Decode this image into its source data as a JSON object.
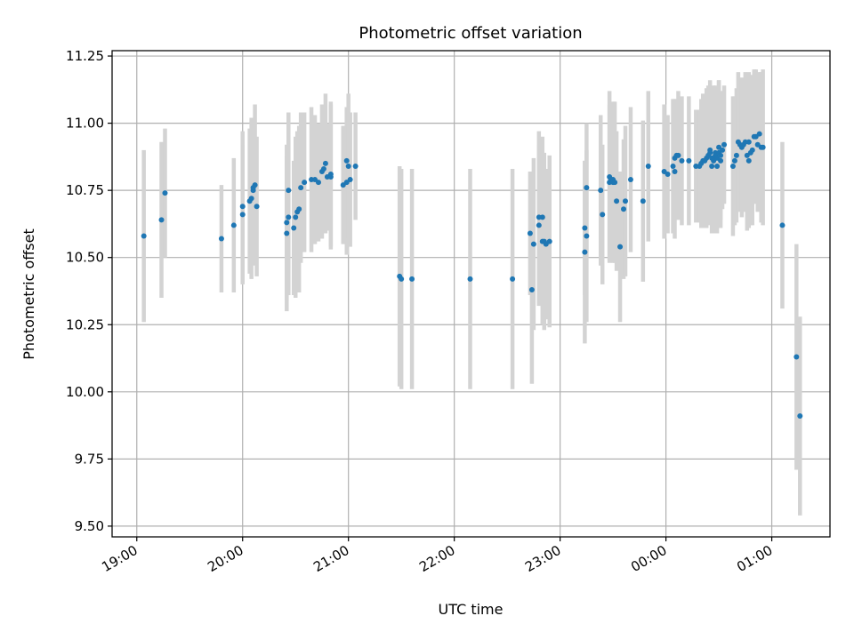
{
  "chart_data": {
    "type": "scatter",
    "title": "Photometric offset variation",
    "xlabel": "UTC time",
    "ylabel": "Photometric offset",
    "grid": true,
    "ylim": [
      9.46,
      11.27
    ],
    "xlim": [
      "18:46",
      "01:33"
    ],
    "x_ticks": [
      "19:00",
      "20:00",
      "21:00",
      "22:00",
      "23:00",
      "00:00",
      "01:00"
    ],
    "y_ticks": [
      "9.50",
      "9.75",
      "10.00",
      "10.25",
      "10.50",
      "10.75",
      "11.00",
      "11.25"
    ],
    "colors": {
      "point": "#1f77b4",
      "errorbar": "#d3d3d3",
      "grid": "#b0b0b0"
    },
    "series": [
      {
        "x": [
          "19:04",
          "19:14",
          "19:16",
          "19:48",
          "19:55",
          "20:00",
          "20:00",
          "20:04",
          "20:05",
          "20:06",
          "20:06",
          "20:07",
          "20:08",
          "20:25",
          "20:25",
          "20:26",
          "20:26",
          "20:29",
          "20:30",
          "20:31",
          "20:32",
          "20:33",
          "20:35",
          "20:39",
          "20:41",
          "20:43",
          "20:45",
          "20:46",
          "20:47",
          "20:48",
          "20:50",
          "20:50",
          "20:57",
          "20:59",
          "20:59",
          "21:00",
          "21:01",
          "21:04",
          "21:29",
          "21:30",
          "21:36",
          "22:09",
          "22:33",
          "22:43",
          "22:44",
          "22:45",
          "22:48",
          "22:48",
          "22:50",
          "22:50",
          "22:51",
          "22:52",
          "22:54",
          "23:14",
          "23:14",
          "23:15",
          "23:15",
          "23:23",
          "23:24",
          "23:28",
          "23:28",
          "23:29",
          "23:30",
          "23:30",
          "23:31",
          "23:32",
          "23:34",
          "23:36",
          "23:37",
          "23:40",
          "23:47",
          "23:50",
          "23:59",
          "24:01",
          "24:04",
          "24:05",
          "24:05",
          "24:06",
          "24:07",
          "24:09",
          "24:13",
          "24:17",
          "24:19",
          "24:20",
          "24:21",
          "24:22",
          "24:23",
          "24:24",
          "24:25",
          "24:25",
          "24:26",
          "24:26",
          "24:27",
          "24:27",
          "24:28",
          "24:28",
          "24:29",
          "24:29",
          "24:30",
          "24:30",
          "24:31",
          "24:31",
          "24:32",
          "24:33",
          "24:38",
          "24:39",
          "24:40",
          "24:41",
          "24:42",
          "24:43",
          "24:44",
          "24:45",
          "24:46",
          "24:47",
          "24:47",
          "24:48",
          "24:49",
          "24:50",
          "24:51",
          "24:52",
          "24:53",
          "24:54",
          "24:55",
          "25:06",
          "25:14",
          "25:16"
        ],
        "y": [
          10.58,
          10.64,
          10.74,
          10.57,
          10.62,
          10.69,
          10.66,
          10.71,
          10.72,
          10.75,
          10.76,
          10.77,
          10.69,
          10.59,
          10.63,
          10.65,
          10.75,
          10.61,
          10.65,
          10.67,
          10.68,
          10.76,
          10.78,
          10.79,
          10.79,
          10.78,
          10.82,
          10.83,
          10.85,
          10.8,
          10.8,
          10.81,
          10.77,
          10.78,
          10.86,
          10.84,
          10.79,
          10.84,
          10.43,
          10.42,
          10.42,
          10.42,
          10.42,
          10.59,
          10.38,
          10.55,
          10.62,
          10.65,
          10.56,
          10.65,
          10.56,
          10.55,
          10.56,
          10.61,
          10.52,
          10.76,
          10.58,
          10.75,
          10.66,
          10.8,
          10.78,
          10.79,
          10.78,
          10.79,
          10.78,
          10.71,
          10.54,
          10.68,
          10.71,
          10.79,
          10.71,
          10.84,
          10.82,
          10.81,
          10.84,
          10.82,
          10.87,
          10.88,
          10.88,
          10.86,
          10.86,
          10.84,
          10.84,
          10.85,
          10.86,
          10.86,
          10.87,
          10.88,
          10.89,
          10.9,
          10.87,
          10.84,
          10.86,
          10.87,
          10.88,
          10.89,
          10.87,
          10.84,
          10.89,
          10.91,
          10.88,
          10.86,
          10.9,
          10.92,
          10.84,
          10.86,
          10.88,
          10.93,
          10.92,
          10.91,
          10.92,
          10.93,
          10.88,
          10.86,
          10.93,
          10.89,
          10.9,
          10.95,
          10.95,
          10.92,
          10.96,
          10.91,
          10.91,
          10.62,
          10.13,
          9.91
        ],
        "yerr": [
          0.32,
          0.29,
          0.24,
          0.2,
          0.25,
          0.28,
          0.26,
          0.27,
          0.3,
          0.24,
          0.24,
          0.3,
          0.26,
          0.29,
          0.29,
          0.29,
          0.29,
          0.25,
          0.3,
          0.3,
          0.31,
          0.28,
          0.26,
          0.27,
          0.24,
          0.22,
          0.25,
          0.22,
          0.26,
          0.2,
          0.27,
          0.27,
          0.22,
          0.27,
          0.2,
          0.27,
          0.25,
          0.2,
          0.41,
          0.41,
          0.41,
          0.41,
          0.41,
          0.23,
          0.35,
          0.32,
          0.3,
          0.32,
          0.31,
          0.3,
          0.33,
          0.28,
          0.32,
          0.25,
          0.34,
          0.24,
          0.32,
          0.28,
          0.26,
          0.32,
          0.29,
          0.27,
          0.3,
          0.27,
          0.3,
          0.26,
          0.28,
          0.26,
          0.28,
          0.27,
          0.3,
          0.28,
          0.25,
          0.22,
          0.25,
          0.25,
          0.22,
          0.21,
          0.24,
          0.24,
          0.24,
          0.21,
          0.21,
          0.24,
          0.25,
          0.24,
          0.26,
          0.26,
          0.23,
          0.26,
          0.24,
          0.25,
          0.27,
          0.27,
          0.25,
          0.25,
          0.26,
          0.25,
          0.27,
          0.25,
          0.24,
          0.25,
          0.22,
          0.22,
          0.26,
          0.24,
          0.25,
          0.26,
          0.24,
          0.26,
          0.24,
          0.26,
          0.28,
          0.25,
          0.26,
          0.27,
          0.28,
          0.25,
          0.25,
          0.25,
          0.23,
          0.28,
          0.29,
          0.31,
          0.42,
          0.37
        ]
      }
    ]
  }
}
